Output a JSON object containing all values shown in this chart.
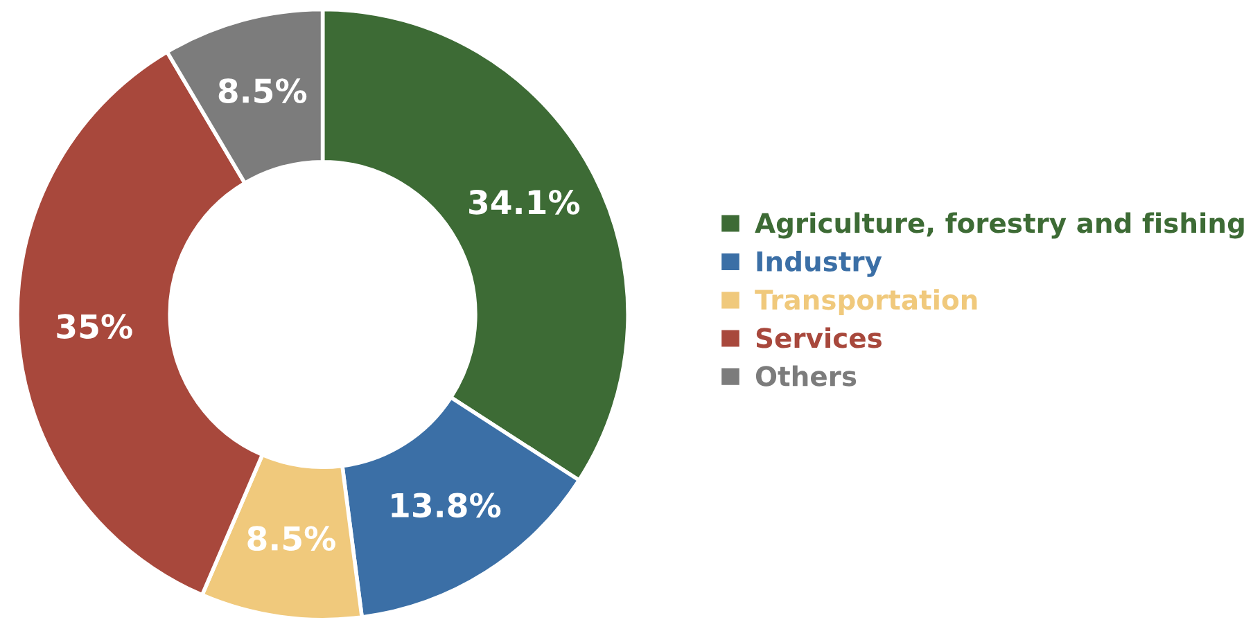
{
  "chart_data": {
    "type": "donut",
    "categories": [
      "Agriculture, forestry and fishing",
      "Industry",
      "Transportation",
      "Services",
      "Others"
    ],
    "values": [
      34.1,
      13.8,
      8.5,
      35,
      8.5
    ],
    "colors": [
      "#3d6b35",
      "#3b6fa6",
      "#f0c97c",
      "#a8483c",
      "#7c7c7c"
    ],
    "value_labels": [
      "34.1%",
      "13.8%",
      "8.5%",
      "35%",
      "8.5%"
    ],
    "legend": "right"
  }
}
